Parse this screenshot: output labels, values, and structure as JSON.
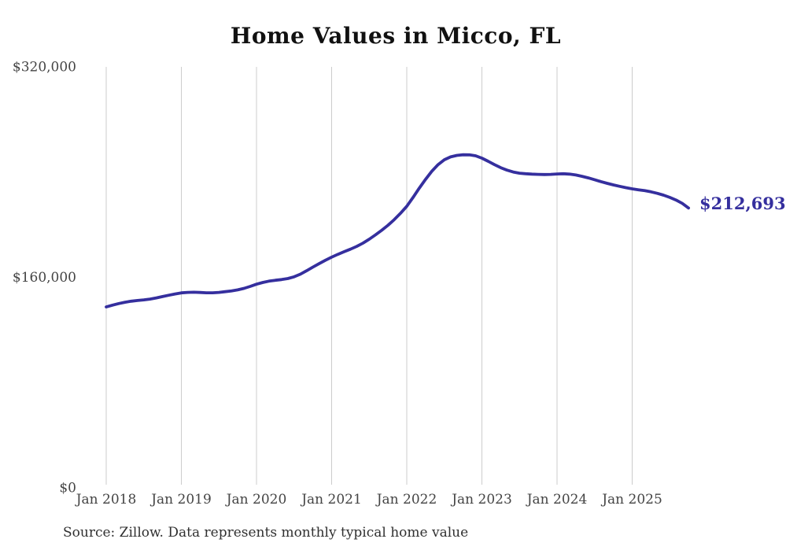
{
  "chart_data": {
    "type": "line",
    "title": "Home Values in Micco, FL",
    "source_note": "Source: Zillow. Data represents monthly typical home value",
    "end_label": "$212,693",
    "end_value": 212693,
    "ylim": [
      0,
      320000
    ],
    "grid": "vertical-only",
    "legend": "none",
    "line_color": "#352f9e",
    "grid_color": "#cccccc",
    "axis_text_color": "#444444",
    "y_ticks": [
      {
        "label": "$320,000",
        "value": 320000
      },
      {
        "label": "$160,000",
        "value": 160000
      },
      {
        "label": "$0",
        "value": 0
      }
    ],
    "x_tick_labels": [
      "Jan 2018",
      "Jan 2019",
      "Jan 2020",
      "Jan 2021",
      "Jan 2022",
      "Jan 2023",
      "Jan 2024",
      "Jan 2025"
    ],
    "x_ticks_every_n_months": 12,
    "months": [
      "Jan 2018",
      "Feb 2018",
      "Mar 2018",
      "Apr 2018",
      "May 2018",
      "Jun 2018",
      "Jul 2018",
      "Aug 2018",
      "Sep 2018",
      "Oct 2018",
      "Nov 2018",
      "Dec 2018",
      "Jan 2019",
      "Feb 2019",
      "Mar 2019",
      "Apr 2019",
      "May 2019",
      "Jun 2019",
      "Jul 2019",
      "Aug 2019",
      "Sep 2019",
      "Oct 2019",
      "Nov 2019",
      "Dec 2019",
      "Jan 2020",
      "Feb 2020",
      "Mar 2020",
      "Apr 2020",
      "May 2020",
      "Jun 2020",
      "Jul 2020",
      "Aug 2020",
      "Sep 2020",
      "Oct 2020",
      "Nov 2020",
      "Dec 2020",
      "Jan 2021",
      "Feb 2021",
      "Mar 2021",
      "Apr 2021",
      "May 2021",
      "Jun 2021",
      "Jul 2021",
      "Aug 2021",
      "Sep 2021",
      "Oct 2021",
      "Nov 2021",
      "Dec 2021",
      "Jan 2022",
      "Feb 2022",
      "Mar 2022",
      "Apr 2022",
      "May 2022",
      "Jun 2022",
      "Jul 2022",
      "Aug 2022",
      "Sep 2022",
      "Oct 2022",
      "Nov 2022",
      "Dec 2022",
      "Jan 2023",
      "Feb 2023",
      "Mar 2023",
      "Apr 2023",
      "May 2023",
      "Jun 2023",
      "Jul 2023",
      "Aug 2023",
      "Sep 2023",
      "Oct 2023",
      "Nov 2023",
      "Dec 2023",
      "Jan 2024",
      "Feb 2024",
      "Mar 2024",
      "Apr 2024",
      "May 2024",
      "Jun 2024",
      "Jul 2024",
      "Aug 2024",
      "Sep 2024",
      "Oct 2024",
      "Nov 2024",
      "Dec 2024",
      "Jan 2025",
      "Feb 2025",
      "Mar 2025",
      "Apr 2025",
      "May 2025",
      "Jun 2025",
      "Jul 2025",
      "Aug 2025",
      "Sep 2025",
      "Oct 2025"
    ],
    "values": [
      137500,
      138900,
      140100,
      141100,
      141900,
      142400,
      142900,
      143500,
      144400,
      145400,
      146400,
      147400,
      148200,
      148600,
      148700,
      148500,
      148300,
      148300,
      148600,
      149100,
      149700,
      150500,
      151600,
      153100,
      154800,
      156100,
      157100,
      157800,
      158300,
      159100,
      160400,
      162400,
      165000,
      167800,
      170400,
      173000,
      175400,
      177500,
      179500,
      181400,
      183500,
      186000,
      189000,
      192300,
      195800,
      199600,
      203900,
      208700,
      214000,
      220800,
      227800,
      234500,
      240600,
      245700,
      249400,
      251600,
      252700,
      253200,
      253100,
      252400,
      250600,
      248200,
      245700,
      243400,
      241500,
      240100,
      239200,
      238800,
      238500,
      238300,
      238200,
      238300,
      238600,
      238800,
      238500,
      237800,
      236800,
      235600,
      234200,
      232800,
      231500,
      230300,
      229200,
      228200,
      227300,
      226600,
      225900,
      225000,
      223900,
      222500,
      220800,
      218800,
      216200,
      212693
    ]
  }
}
